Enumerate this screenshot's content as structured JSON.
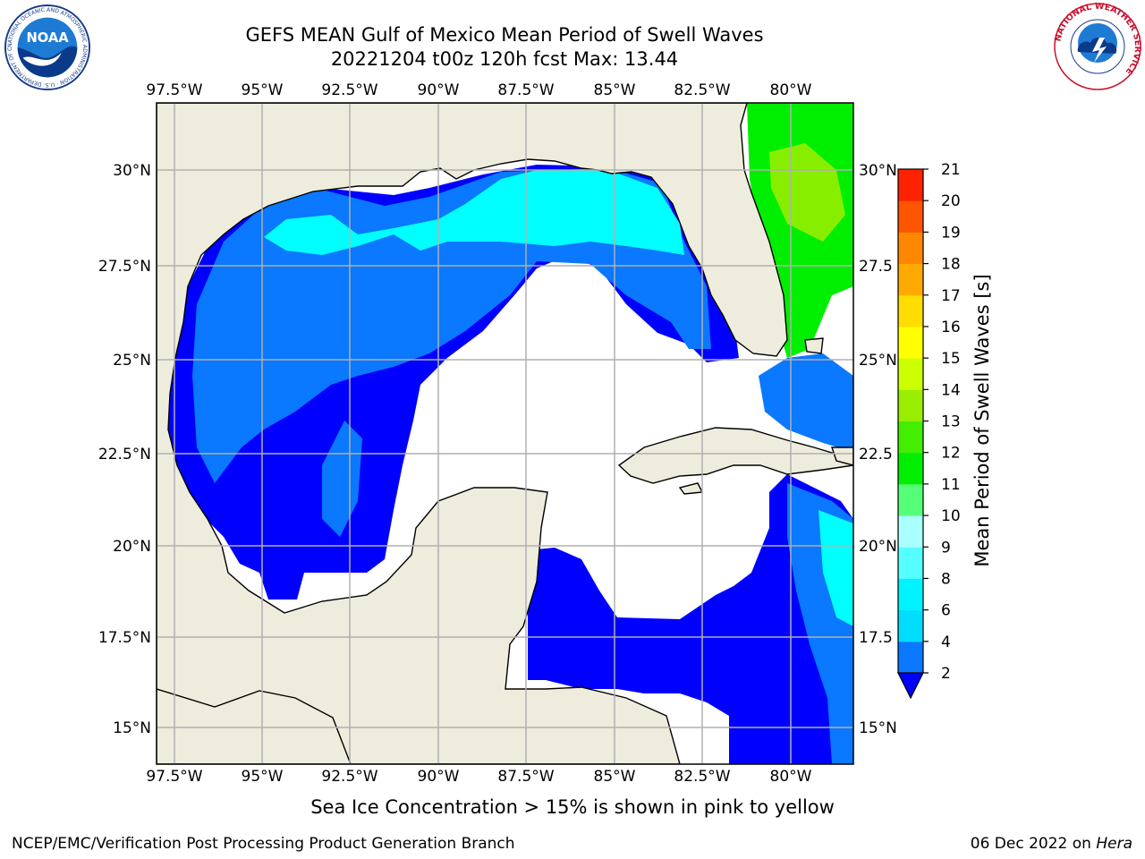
{
  "header": {
    "title_line1": "GEFS MEAN Gulf of Mexico Mean Period of Swell Waves",
    "title_line2": "20221204 t00z 120h fcst   Max: 13.44"
  },
  "logos": {
    "left": "NOAA",
    "left_ring": "NATIONAL OCEANIC AND ATMOSPHERIC ADMINISTRATION · U.S. DEPARTMENT OF COMMERCE",
    "right_ring": "NATIONAL WEATHER SERVICE"
  },
  "map": {
    "lon_labels": [
      "97.5°W",
      "95°W",
      "92.5°W",
      "90°W",
      "87.5°W",
      "85°W",
      "82.5°W",
      "80°W"
    ],
    "lat_labels_left": [
      "30°N",
      "27.5°N",
      "25°N",
      "22.5°N",
      "20°N",
      "17.5°N",
      "15°N"
    ],
    "lat_labels_right": [
      "30°N",
      "27.5",
      "25°N",
      "22.5",
      "20°N",
      "17.5",
      "15°N"
    ],
    "colors": {
      "land": "#eeecdc",
      "ocean_low": "#ffffff",
      "grid": "#b0b0b0"
    }
  },
  "colorbar": {
    "label": "Mean Period of Swell Waves [s]",
    "ticks": [
      "2",
      "4",
      "6",
      "8",
      "9",
      "10",
      "11",
      "12",
      "13",
      "14",
      "15",
      "16",
      "17",
      "18",
      "19",
      "20",
      "21"
    ],
    "colors": [
      "#0000ff",
      "#0a78ff",
      "#00ddff",
      "#00f4ff",
      "#55ffff",
      "#aaffff",
      "#55ff77",
      "#00ee00",
      "#44ee00",
      "#99ee00",
      "#ccff00",
      "#ffff00",
      "#ffdd00",
      "#ffaa00",
      "#ff8800",
      "#ff5500",
      "#ff2200",
      "#ff0000"
    ]
  },
  "note": "Sea Ice Concentration > 15% is shown in pink to yellow",
  "footer": {
    "left": "NCEP/EMC/Verification Post Processing Product Generation Branch",
    "date": "06 Dec 2022 on ",
    "host": "Hera"
  }
}
